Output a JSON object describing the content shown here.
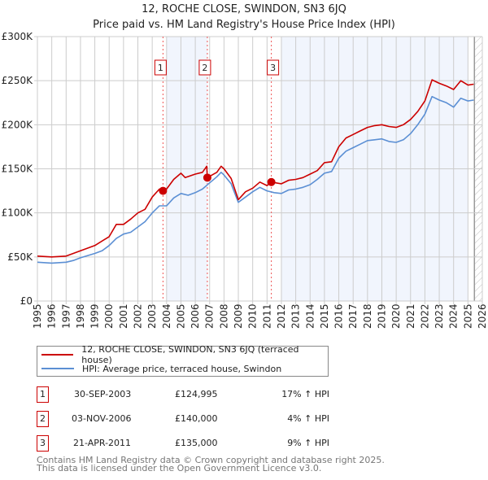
{
  "chart_data": {
    "type": "line",
    "title": "12, ROCHE CLOSE, SWINDON, SN3 6JQ",
    "subtitle": "Price paid vs. HM Land Registry's House Price Index (HPI)",
    "xlim": [
      1995,
      2026
    ],
    "ylim": [
      0,
      300000
    ],
    "y_ticks": [
      {
        "v": 0,
        "label": "£0"
      },
      {
        "v": 50000,
        "label": "£50K"
      },
      {
        "v": 100000,
        "label": "£100K"
      },
      {
        "v": 150000,
        "label": "£150K"
      },
      {
        "v": 200000,
        "label": "£200K"
      },
      {
        "v": 250000,
        "label": "£250K"
      },
      {
        "v": 300000,
        "label": "£300K"
      }
    ],
    "x_ticks": [
      "1995",
      "1996",
      "1997",
      "1998",
      "1999",
      "2000",
      "2001",
      "2002",
      "2003",
      "2004",
      "2005",
      "2006",
      "2007",
      "2008",
      "2009",
      "2010",
      "2011",
      "2012",
      "2013",
      "2014",
      "2015",
      "2016",
      "2017",
      "2018",
      "2019",
      "2020",
      "2021",
      "2022",
      "2023",
      "2024",
      "2025",
      "2026"
    ],
    "grid": true,
    "legend_placement": "below",
    "shaded_ranges": [
      [
        2004.0,
        2006.86
      ],
      [
        2012.0,
        2025.0
      ]
    ],
    "hatched_from": 2025.45,
    "series": [
      {
        "name": "12, ROCHE CLOSE, SWINDON, SN3 6JQ (terraced house)",
        "color": "#cc0000",
        "x": [
          1995,
          1996,
          1997,
          1998,
          1999,
          2000,
          2000.5,
          2001,
          2001.5,
          2002,
          2002.5,
          2003,
          2003.5,
          2004,
          2004.5,
          2005,
          2005.3,
          2006,
          2006.5,
          2006.8,
          2006.84,
          2007.5,
          2007.8,
          2008,
          2008.5,
          2009,
          2009.5,
          2010,
          2010.5,
          2011,
          2011.3,
          2012,
          2012.5,
          2013,
          2013.5,
          2014,
          2014.5,
          2015,
          2015.5,
          2016,
          2016.5,
          2017,
          2017.5,
          2018,
          2018.5,
          2019,
          2019.5,
          2020,
          2020.5,
          2021,
          2021.5,
          2022,
          2022.5,
          2023,
          2023.5,
          2024,
          2024.5,
          2025,
          2025.4
        ],
        "y": [
          51,
          50,
          51,
          57,
          63,
          73,
          87,
          87,
          93,
          100,
          104,
          118,
          127,
          127,
          138,
          145,
          140,
          144,
          146,
          153,
          140,
          146,
          153,
          150,
          139,
          115,
          124,
          128,
          135,
          131,
          135,
          133,
          137,
          138,
          140,
          144,
          148,
          157,
          158,
          175,
          185,
          189,
          193,
          197,
          199,
          200,
          198,
          197,
          200,
          206,
          215,
          227,
          251,
          247,
          244,
          240,
          250,
          245,
          246
        ]
      },
      {
        "name": "HPI: Average price, terraced house, Swindon",
        "color": "#5b8fd4",
        "x": [
          1995,
          1996,
          1997,
          1997.5,
          1998,
          1999,
          1999.5,
          2000,
          2000.5,
          2001,
          2001.5,
          2002,
          2002.5,
          2003,
          2003.5,
          2004,
          2004.5,
          2005,
          2005.5,
          2006,
          2006.5,
          2007,
          2007.5,
          2007.8,
          2008,
          2008.5,
          2009,
          2009.5,
          2010,
          2010.5,
          2011,
          2011.5,
          2012,
          2012.5,
          2013,
          2013.5,
          2014,
          2014.5,
          2015,
          2015.5,
          2016,
          2016.5,
          2017,
          2017.5,
          2018,
          2018.5,
          2019,
          2019.5,
          2020,
          2020.5,
          2021,
          2021.5,
          2022,
          2022.5,
          2023,
          2023.5,
          2024,
          2024.5,
          2025,
          2025.4
        ],
        "y": [
          44,
          43,
          44,
          46,
          49,
          54,
          57,
          63,
          71,
          76,
          78,
          84,
          90,
          100,
          108,
          108,
          117,
          122,
          120,
          123,
          127,
          134,
          141,
          146,
          143,
          133,
          112,
          118,
          124,
          129,
          125,
          123,
          122,
          126,
          127,
          129,
          132,
          138,
          145,
          147,
          162,
          170,
          174,
          178,
          182,
          183,
          184,
          181,
          180,
          183,
          190,
          200,
          212,
          232,
          228,
          225,
          220,
          230,
          227,
          228
        ]
      }
    ],
    "y_unit_multiplier": 1000,
    "sales": [
      {
        "id": "1",
        "x": 2003.75,
        "price": 124995,
        "date": "30-SEP-2003",
        "price_label": "£124,995",
        "hpi": "17% ↑ HPI"
      },
      {
        "id": "2",
        "x": 2006.84,
        "price": 140000,
        "date": "03-NOV-2006",
        "price_label": "£140,000",
        "hpi": "4% ↑ HPI"
      },
      {
        "id": "3",
        "x": 2011.3,
        "price": 135000,
        "date": "21-APR-2011",
        "price_label": "£135,000",
        "hpi": "9% ↑ HPI"
      }
    ]
  },
  "footer": {
    "line1": "Contains HM Land Registry data © Crown copyright and database right 2025.",
    "line2": "This data is licensed under the Open Government Licence v3.0."
  }
}
